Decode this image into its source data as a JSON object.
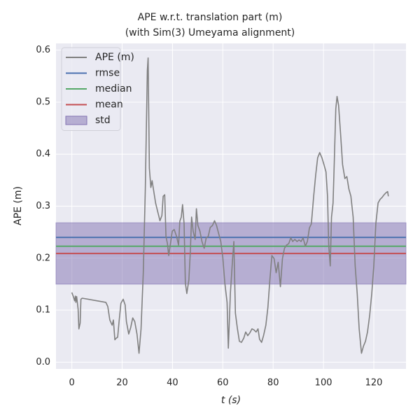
{
  "chart_data": {
    "type": "line",
    "title": [
      "APE w.r.t. translation part (m)",
      "(with Sim(3) Umeyama alignment)"
    ],
    "xlabel": "t (s)",
    "ylabel": "APE (m)",
    "x": [
      0,
      0.6,
      1.1,
      1.4,
      1.6,
      1.9,
      2.5,
      2.8,
      3.3,
      3.6,
      4.1,
      13.5,
      14.3,
      15.1,
      16,
      16.5,
      17.1,
      17.6,
      18.2,
      18.7,
      19.5,
      20.4,
      21.2,
      21.7,
      22.6,
      23.4,
      24.2,
      25,
      25.9,
      26.7,
      27.5,
      28.4,
      29.2,
      30,
      30.3,
      30.8,
      31.4,
      31.9,
      32.5,
      33.3,
      34.1,
      35,
      35.8,
      36.3,
      36.9,
      37.4,
      38,
      38.5,
      39.1,
      39.9,
      40.7,
      41.6,
      42.4,
      42.9,
      43.5,
      44,
      44.6,
      45.1,
      45.7,
      46.5,
      47.1,
      47.6,
      48.2,
      49,
      49.5,
      50.1,
      50.9,
      51.7,
      52.6,
      53.4,
      54.2,
      55,
      55.9,
      56.7,
      57.5,
      58.4,
      59.2,
      60,
      60.8,
      61.7,
      62.2,
      63,
      63.9,
      64.4,
      65,
      65.8,
      66.6,
      67.4,
      68.3,
      69.1,
      69.9,
      70.7,
      71.6,
      72.4,
      73.2,
      74,
      74.6,
      75.4,
      76.2,
      77.1,
      77.9,
      78.7,
      79.5,
      80.4,
      81.2,
      82,
      82.9,
      83.7,
      84.5,
      85.3,
      86.2,
      87,
      87.8,
      88.6,
      89.5,
      90.3,
      91.1,
      91.9,
      92.8,
      93.6,
      94.4,
      95.2,
      96.1,
      96.9,
      97.7,
      98.5,
      99.4,
      100.2,
      101,
      101.6,
      102.1,
      102.7,
      103.2,
      103.8,
      104.3,
      104.9,
      105.4,
      106,
      106.8,
      107.6,
      108.5,
      109.3,
      110.1,
      110.9,
      111.8,
      112.6,
      113.4,
      114.2,
      115.1,
      115.9,
      116.7,
      117.5,
      118.4,
      119.2,
      120,
      120.8,
      121.7,
      122.5,
      123.3,
      124.1,
      124.9,
      125.5,
      125.8
    ],
    "series": [
      {
        "name": "APE (m)",
        "color": "#808080",
        "values": [
          0.134,
          0.126,
          0.118,
          0.127,
          0.115,
          0.126,
          0.102,
          0.064,
          0.075,
          0.121,
          0.123,
          0.115,
          0.107,
          0.081,
          0.071,
          0.081,
          0.043,
          0.046,
          0.048,
          0.075,
          0.113,
          0.121,
          0.11,
          0.078,
          0.054,
          0.067,
          0.085,
          0.078,
          0.054,
          0.017,
          0.064,
          0.172,
          0.333,
          0.561,
          0.585,
          0.373,
          0.336,
          0.349,
          0.33,
          0.306,
          0.29,
          0.272,
          0.282,
          0.319,
          0.322,
          0.242,
          0.228,
          0.205,
          0.225,
          0.252,
          0.255,
          0.242,
          0.225,
          0.271,
          0.279,
          0.303,
          0.266,
          0.152,
          0.132,
          0.158,
          0.212,
          0.279,
          0.252,
          0.236,
          0.295,
          0.263,
          0.252,
          0.232,
          0.219,
          0.239,
          0.242,
          0.259,
          0.263,
          0.272,
          0.263,
          0.246,
          0.232,
          0.201,
          0.152,
          0.115,
          0.027,
          0.132,
          0.199,
          0.232,
          0.094,
          0.064,
          0.04,
          0.038,
          0.046,
          0.058,
          0.051,
          0.056,
          0.064,
          0.062,
          0.058,
          0.064,
          0.044,
          0.038,
          0.051,
          0.071,
          0.105,
          0.158,
          0.205,
          0.199,
          0.172,
          0.192,
          0.145,
          0.199,
          0.219,
          0.225,
          0.228,
          0.239,
          0.232,
          0.236,
          0.232,
          0.235,
          0.232,
          0.239,
          0.223,
          0.232,
          0.258,
          0.266,
          0.319,
          0.36,
          0.393,
          0.403,
          0.393,
          0.38,
          0.366,
          0.319,
          0.225,
          0.185,
          0.279,
          0.306,
          0.387,
          0.487,
          0.511,
          0.494,
          0.44,
          0.38,
          0.353,
          0.357,
          0.333,
          0.319,
          0.279,
          0.185,
          0.132,
          0.064,
          0.017,
          0.031,
          0.04,
          0.058,
          0.091,
          0.132,
          0.185,
          0.266,
          0.306,
          0.313,
          0.317,
          0.322,
          0.326,
          0.328,
          0.319
        ]
      }
    ],
    "hlines": [
      {
        "name": "rmse",
        "color": "#4c72b0",
        "value": 0.24
      },
      {
        "name": "median",
        "color": "#55a868",
        "value": 0.223
      },
      {
        "name": "mean",
        "color": "#c44e52",
        "value": 0.209
      }
    ],
    "band": {
      "name": "std",
      "color": "#8172b2",
      "value": 0.059
    },
    "xlim": [
      -6.3,
      132.8
    ],
    "ylim": [
      -0.013,
      0.613
    ],
    "xticks": [
      0,
      20,
      40,
      60,
      80,
      100,
      120
    ],
    "yticks": [
      {
        "value": 0,
        "label": "0.0"
      },
      0.1,
      0.2,
      0.3,
      0.4,
      0.5,
      0.6
    ],
    "grid": true,
    "legend": "upper left"
  }
}
